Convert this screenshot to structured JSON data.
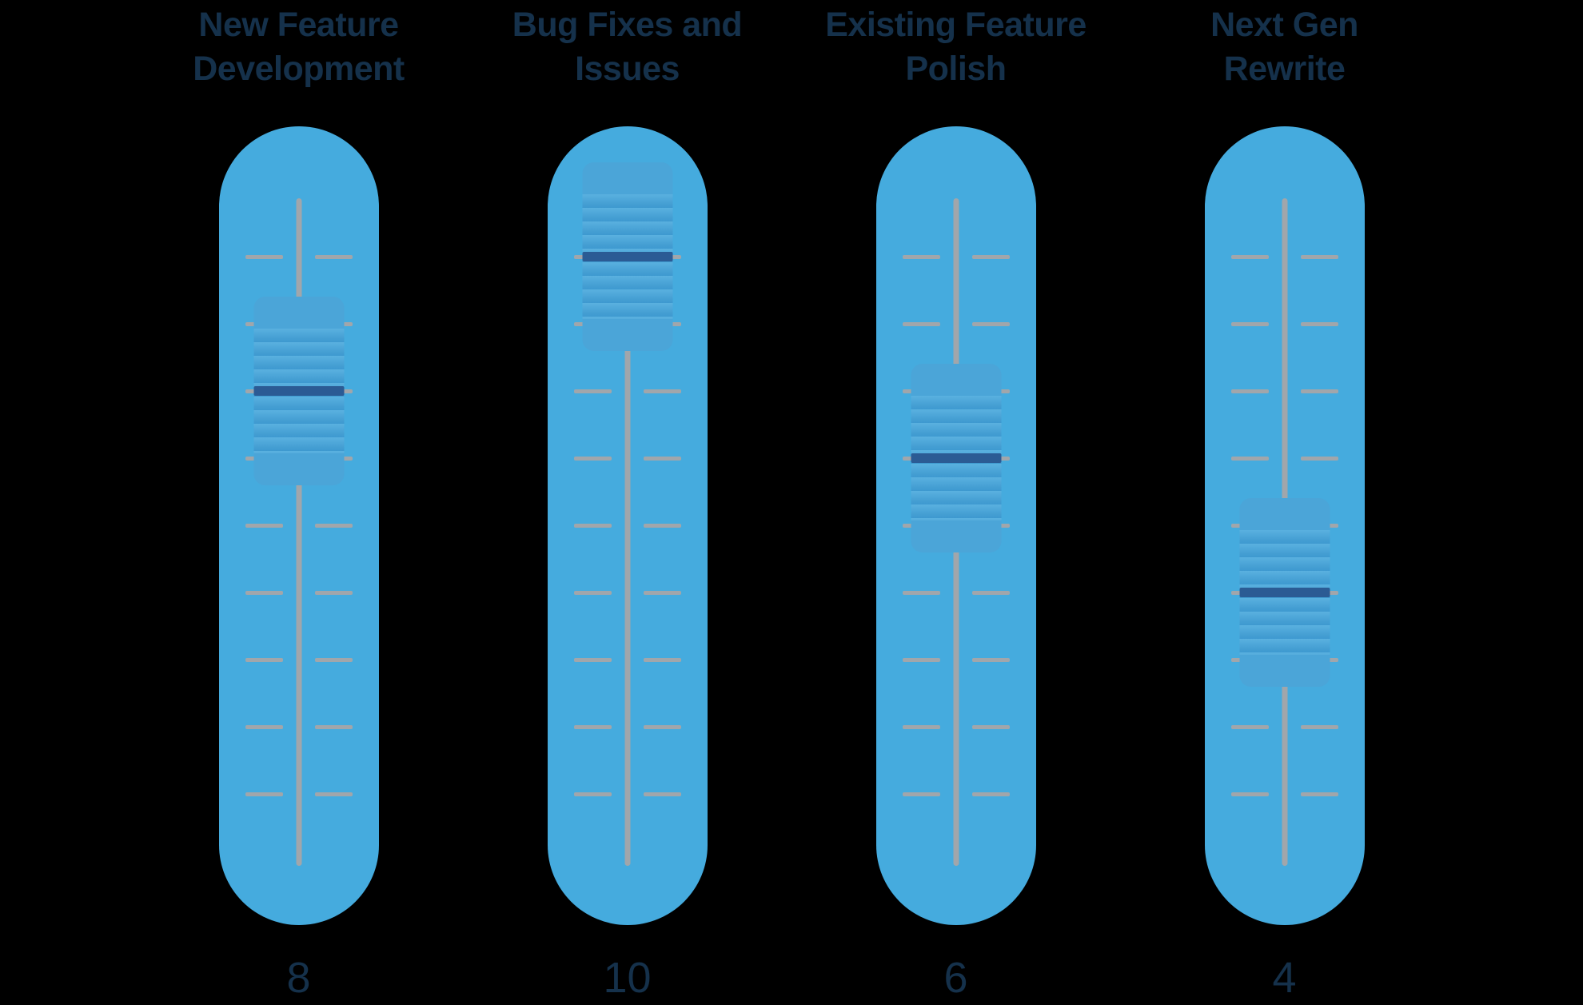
{
  "chart_data": {
    "type": "bar",
    "representation": "vertical-slider-faders",
    "categories": [
      "New Feature Development",
      "Bug Fixes and Issues",
      "Existing Feature Polish",
      "Next Gen Rewrite"
    ],
    "values": [
      8,
      10,
      6,
      4
    ],
    "title": "",
    "xlabel": "",
    "ylabel": "",
    "legend": false,
    "tick_rows_per_slider": 9,
    "handle_tick_indices": [
      2,
      0,
      3,
      5
    ]
  },
  "colors": {
    "background": "#000000",
    "track_pill": "#45ABDE",
    "rail_and_ticks": "#A1A6AB",
    "handle": "#4BA5D8",
    "handle_grip_bar": "#2B5B94",
    "label_text": "#15314B"
  },
  "sliders": [
    {
      "title_line1": "New Feature",
      "title_line2": "Development",
      "value": "8",
      "handle_tick_index": 2
    },
    {
      "title_line1": "Bug Fixes and",
      "title_line2": "Issues",
      "value": "10",
      "handle_tick_index": 0
    },
    {
      "title_line1": "Existing Feature",
      "title_line2": "Polish",
      "value": "6",
      "handle_tick_index": 3
    },
    {
      "title_line1": "Next Gen",
      "title_line2": "Rewrite",
      "value": "4",
      "handle_tick_index": 5
    }
  ]
}
